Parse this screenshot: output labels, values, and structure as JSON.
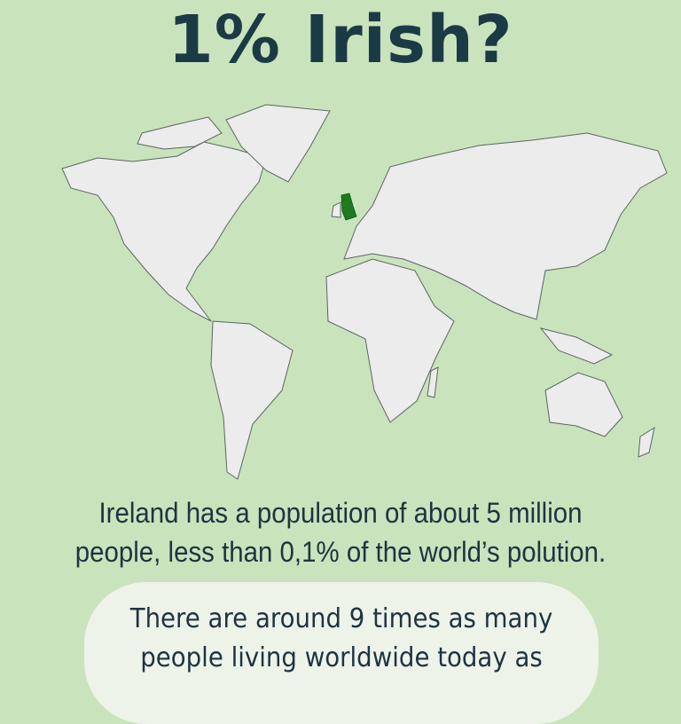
{
  "title": "1% Irish?",
  "map": {
    "highlight_country": "Ireland",
    "highlight_color": "#1e7a1e",
    "land_color": "#ececec",
    "background_color": "#c9e4bd"
  },
  "caption": {
    "line1": "Ireland has a population of about 5 million",
    "line2": "people, less than 0,1% of the world’s polution."
  },
  "callout": {
    "line1": "There are around 9 times as many",
    "line2": "people living worldwide today as"
  }
}
